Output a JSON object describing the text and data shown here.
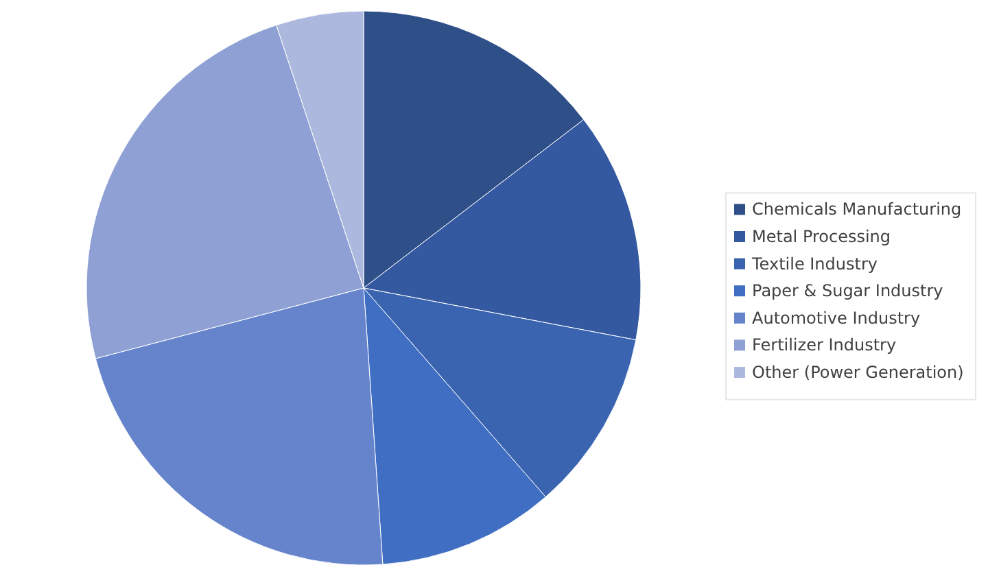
{
  "chart_data": {
    "type": "pie",
    "categories": [
      "Chemicals Manufacturing",
      "Metal Processing",
      "Textile Industry",
      "Paper & Sugar Industry",
      "Automotive Industry",
      "Fertilizer Industry",
      "Other (Power Generation)"
    ],
    "values": [
      14.6,
      13.4,
      10.6,
      10.3,
      22.0,
      24.0,
      5.1
    ],
    "colors": [
      "#2f4f89",
      "#3459a0",
      "#3a64b0",
      "#3f6ec2",
      "#6684cc",
      "#8fa1d4",
      "#adb8de"
    ],
    "legend": "right"
  }
}
